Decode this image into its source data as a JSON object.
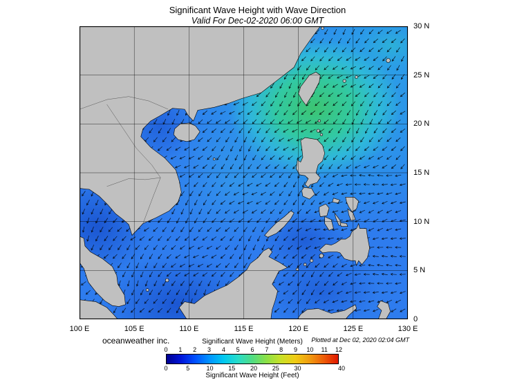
{
  "header": {
    "title": "Significant Wave Height with Wave Direction",
    "subtitle": "Valid For Dec-02-2020 06:00 GMT"
  },
  "axes": {
    "lon_labels": [
      "100 E",
      "105 E",
      "110 E",
      "115 E",
      "120 E",
      "125 E",
      "130 E"
    ],
    "lat_labels": [
      "30 N",
      "25 N",
      "20 N",
      "15 N",
      "10 N",
      "5 N",
      "0"
    ]
  },
  "footer": {
    "credit": "oceanweather inc.",
    "plotted": "Plotted at Dec 02, 2020 02:04 GMT"
  },
  "legend": {
    "meters_label": "Significant Wave Height (Meters)",
    "feet_label": "Significant Wave Height (Feet)",
    "meters_ticks": [
      0,
      1,
      2,
      3,
      4,
      5,
      6,
      7,
      8,
      9,
      10,
      11,
      12
    ],
    "feet_ticks": [
      0,
      5,
      10,
      15,
      20,
      25,
      30,
      40
    ],
    "colorbar_colors": [
      "#000090",
      "#0014d8",
      "#0050ff",
      "#0094ff",
      "#00c8f0",
      "#28dcc8",
      "#50dc82",
      "#8ce046",
      "#c8e028",
      "#f0cc14",
      "#f09c10",
      "#ee5c08",
      "#e01800"
    ]
  },
  "map_colors": {
    "land": "#c0c0c0",
    "coastline": "#000000",
    "ocean_base": "#2e7cee",
    "arrow": "#000000",
    "grid": "#000000"
  },
  "chart_data": {
    "type": "heatmap",
    "title": "Significant Wave Height with Wave Direction",
    "valid_for": "Dec-02-2020 06:00 GMT",
    "plotted_at": "Dec 02, 2020 02:04 GMT",
    "source": "oceanweather inc.",
    "region": {
      "lon_range_deg_e": [
        100,
        130
      ],
      "lat_range_deg_n": [
        0,
        30
      ],
      "lon_ticks": [
        "100 E",
        "105 E",
        "110 E",
        "115 E",
        "120 E",
        "125 E",
        "130 E"
      ],
      "lat_ticks": [
        "0",
        "5 N",
        "10 N",
        "15 N",
        "20 N",
        "25 N",
        "30 N"
      ],
      "grid_interval_deg": 5
    },
    "colorbar": {
      "units": [
        "Meters",
        "Feet"
      ],
      "meters_ticks": [
        0,
        1,
        2,
        3,
        4,
        5,
        6,
        7,
        8,
        9,
        10,
        11,
        12
      ],
      "feet_ticks": [
        0,
        5,
        10,
        15,
        20,
        25,
        30,
        40
      ],
      "colors": [
        "#000090",
        "#0014d8",
        "#0050ff",
        "#0094ff",
        "#00c8f0",
        "#28dcc8",
        "#50dc82",
        "#8ce046",
        "#c8e028",
        "#f0cc14",
        "#f09c10",
        "#ee5c08",
        "#e01800"
      ]
    },
    "arrows": {
      "meaning": "wave propagation direction",
      "predominant": "toward southwest (northeast monsoon pattern)"
    },
    "field_samples": [
      {
        "lon": 121.5,
        "lat": 22.0,
        "hs_m": 4.5
      },
      {
        "lon": 119.0,
        "lat": 20.0,
        "hs_m": 4.0
      },
      {
        "lon": 124.0,
        "lat": 25.0,
        "hs_m": 3.5
      },
      {
        "lon": 127.0,
        "lat": 21.0,
        "hs_m": 3.0
      },
      {
        "lon": 116.0,
        "lat": 16.0,
        "hs_m": 3.0
      },
      {
        "lon": 113.0,
        "lat": 20.0,
        "hs_m": 2.0
      },
      {
        "lon": 113.0,
        "lat": 12.0,
        "hs_m": 2.5
      },
      {
        "lon": 117.0,
        "lat": 8.0,
        "hs_m": 2.0
      },
      {
        "lon": 126.0,
        "lat": 8.0,
        "hs_m": 2.0
      },
      {
        "lon": 110.0,
        "lat": 5.0,
        "hs_m": 1.5
      },
      {
        "lon": 120.5,
        "lat": 8.0,
        "hs_m": 1.5
      },
      {
        "lon": 107.5,
        "lat": 19.5,
        "hs_m": 1.0
      },
      {
        "lon": 102.0,
        "lat": 9.0,
        "hs_m": 1.0
      }
    ]
  }
}
